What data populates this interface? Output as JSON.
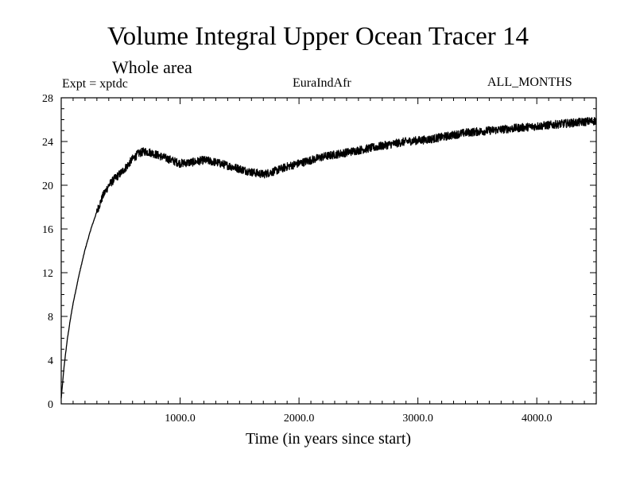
{
  "header": {
    "title": "Volume Integral Upper Ocean Tracer 14",
    "subtitle": "Whole area",
    "experiment": "Expt = xptdc",
    "region": "EuraIndAfr",
    "months": "ALL_MONTHS"
  },
  "chart_data": {
    "type": "line",
    "title": "Volume Integral Upper Ocean Tracer 14",
    "subtitle": "Whole area",
    "xlabel": "Time (in years since start)",
    "ylabel": "",
    "xlim": [
      0,
      4500
    ],
    "ylim": [
      0,
      28
    ],
    "x_ticks": [
      1000,
      2000,
      3000,
      4000
    ],
    "x_tick_labels": [
      "1000.0",
      "2000.0",
      "3000.0",
      "4000.0"
    ],
    "y_ticks": [
      0,
      4,
      8,
      12,
      16,
      20,
      24,
      28
    ],
    "y_tick_labels": [
      "0",
      "4",
      "8",
      "12",
      "16",
      "20",
      "24",
      "28"
    ],
    "grid": false,
    "line_color": "#000000",
    "series": [
      {
        "x": [
          0,
          25,
          50,
          75,
          100,
          150,
          200,
          250,
          300,
          350,
          400,
          450,
          500,
          550,
          600,
          650,
          700,
          750,
          800,
          900,
          1000,
          1100,
          1200,
          1300,
          1400,
          1500,
          1600,
          1700,
          1800,
          1900,
          2000,
          2100,
          2200,
          2300,
          2400,
          2500,
          2600,
          2700,
          2800,
          2900,
          3000,
          3100,
          3200,
          3300,
          3400,
          3500,
          3600,
          3700,
          3800,
          3900,
          4000,
          4100,
          4200,
          4300,
          4400,
          4500
        ],
        "values": [
          0.5,
          3.5,
          5.8,
          7.6,
          9.2,
          11.8,
          14.1,
          16.0,
          17.6,
          19.0,
          20.0,
          20.6,
          21.1,
          21.7,
          22.4,
          22.9,
          23.1,
          23.0,
          22.8,
          22.4,
          22.0,
          22.1,
          22.3,
          22.1,
          21.8,
          21.5,
          21.2,
          21.0,
          21.3,
          21.7,
          22.0,
          22.3,
          22.6,
          22.8,
          23.0,
          23.2,
          23.4,
          23.6,
          23.8,
          24.0,
          24.1,
          24.2,
          24.4,
          24.6,
          24.8,
          24.9,
          25.0,
          25.1,
          25.2,
          25.3,
          25.4,
          25.5,
          25.6,
          25.7,
          25.8,
          25.9
        ]
      }
    ]
  }
}
